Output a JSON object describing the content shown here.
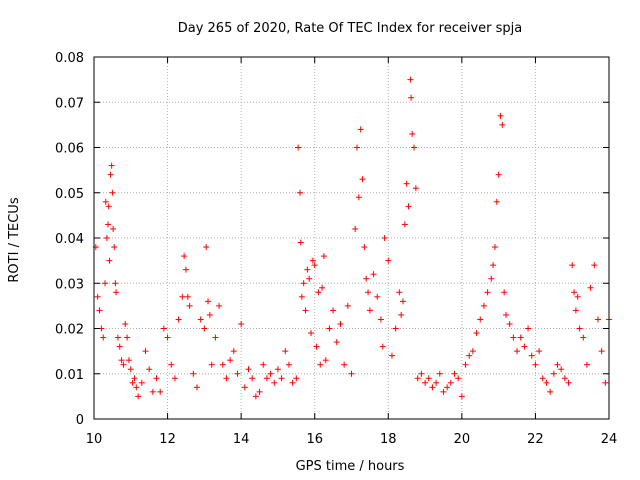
{
  "chart_data": {
    "type": "scatter",
    "title": "Day 265 of 2020, Rate Of TEC Index for receiver spja",
    "xlabel": "GPS time / hours",
    "ylabel": "ROTI / TECUs",
    "xlim": [
      10,
      24
    ],
    "ylim": [
      0,
      0.08
    ],
    "xticks": [
      10,
      12,
      14,
      16,
      18,
      20,
      22,
      24
    ],
    "xtick_labels": [
      "10",
      "12",
      "14",
      "16",
      "18",
      "20",
      "22",
      "24"
    ],
    "yticks": [
      0,
      0.01,
      0.02,
      0.03,
      0.04,
      0.05,
      0.06,
      0.07,
      0.08
    ],
    "ytick_labels": [
      "0",
      "0.01",
      "0.02",
      "0.03",
      "0.04",
      "0.05",
      "0.06",
      "0.07",
      "0.08"
    ],
    "grid": true,
    "marker": "+",
    "marker_color": "#ff0000",
    "series": [
      {
        "name": "ROTI",
        "x": [
          10.05,
          10.1,
          10.15,
          10.2,
          10.25,
          10.3,
          10.32,
          10.35,
          10.38,
          10.4,
          10.42,
          10.45,
          10.48,
          10.5,
          10.52,
          10.55,
          10.58,
          10.6,
          10.65,
          10.7,
          10.75,
          10.8,
          10.85,
          10.9,
          10.95,
          11.0,
          11.05,
          11.1,
          11.15,
          11.2,
          11.3,
          11.4,
          11.5,
          11.6,
          11.7,
          11.8,
          11.9,
          12.0,
          12.1,
          12.2,
          12.3,
          12.4,
          12.45,
          12.5,
          12.55,
          12.6,
          12.7,
          12.8,
          12.9,
          13.0,
          13.05,
          13.1,
          13.15,
          13.2,
          13.3,
          13.4,
          13.5,
          13.6,
          13.7,
          13.8,
          13.9,
          14.0,
          14.1,
          14.2,
          14.3,
          14.4,
          14.5,
          14.6,
          14.7,
          14.8,
          14.9,
          15.0,
          15.1,
          15.2,
          15.3,
          15.4,
          15.5,
          15.55,
          15.6,
          15.62,
          15.65,
          15.7,
          15.75,
          15.8,
          15.85,
          15.9,
          15.95,
          16.0,
          16.05,
          16.1,
          16.15,
          16.2,
          16.25,
          16.3,
          16.4,
          16.5,
          16.6,
          16.7,
          16.8,
          16.9,
          17.0,
          17.1,
          17.15,
          17.2,
          17.25,
          17.3,
          17.35,
          17.4,
          17.45,
          17.5,
          17.6,
          17.7,
          17.8,
          17.85,
          17.9,
          18.0,
          18.1,
          18.2,
          18.3,
          18.35,
          18.4,
          18.45,
          18.5,
          18.55,
          18.6,
          18.62,
          18.65,
          18.7,
          18.75,
          18.8,
          18.9,
          19.0,
          19.1,
          19.2,
          19.3,
          19.4,
          19.5,
          19.6,
          19.7,
          19.8,
          19.9,
          20.0,
          20.1,
          20.2,
          20.3,
          20.4,
          20.5,
          20.6,
          20.7,
          20.8,
          20.85,
          20.9,
          20.95,
          21.0,
          21.05,
          21.1,
          21.15,
          21.2,
          21.3,
          21.4,
          21.5,
          21.6,
          21.7,
          21.8,
          21.9,
          22.0,
          22.1,
          22.2,
          22.3,
          22.4,
          22.5,
          22.6,
          22.7,
          22.8,
          22.9,
          23.0,
          23.05,
          23.1,
          23.15,
          23.2,
          23.3,
          23.4,
          23.5,
          23.6,
          23.7,
          23.8,
          23.9,
          24.0
        ],
        "y": [
          0.038,
          0.027,
          0.024,
          0.02,
          0.018,
          0.03,
          0.048,
          0.04,
          0.043,
          0.047,
          0.035,
          0.054,
          0.056,
          0.05,
          0.042,
          0.038,
          0.03,
          0.028,
          0.018,
          0.016,
          0.013,
          0.012,
          0.021,
          0.018,
          0.013,
          0.011,
          0.008,
          0.009,
          0.007,
          0.005,
          0.008,
          0.015,
          0.011,
          0.006,
          0.009,
          0.006,
          0.02,
          0.018,
          0.012,
          0.009,
          0.022,
          0.027,
          0.036,
          0.033,
          0.027,
          0.025,
          0.01,
          0.007,
          0.022,
          0.02,
          0.038,
          0.026,
          0.023,
          0.012,
          0.018,
          0.025,
          0.012,
          0.009,
          0.013,
          0.015,
          0.01,
          0.021,
          0.007,
          0.011,
          0.009,
          0.005,
          0.006,
          0.012,
          0.009,
          0.01,
          0.008,
          0.011,
          0.009,
          0.015,
          0.012,
          0.008,
          0.009,
          0.06,
          0.05,
          0.039,
          0.027,
          0.03,
          0.024,
          0.033,
          0.031,
          0.019,
          0.035,
          0.034,
          0.016,
          0.028,
          0.012,
          0.029,
          0.036,
          0.013,
          0.02,
          0.024,
          0.017,
          0.021,
          0.012,
          0.025,
          0.01,
          0.042,
          0.06,
          0.049,
          0.064,
          0.053,
          0.038,
          0.031,
          0.028,
          0.024,
          0.032,
          0.027,
          0.022,
          0.016,
          0.04,
          0.035,
          0.014,
          0.02,
          0.028,
          0.023,
          0.026,
          0.043,
          0.052,
          0.047,
          0.075,
          0.071,
          0.063,
          0.06,
          0.051,
          0.009,
          0.01,
          0.008,
          0.009,
          0.007,
          0.008,
          0.01,
          0.006,
          0.007,
          0.008,
          0.01,
          0.009,
          0.005,
          0.012,
          0.014,
          0.015,
          0.019,
          0.022,
          0.025,
          0.028,
          0.031,
          0.034,
          0.038,
          0.048,
          0.054,
          0.067,
          0.065,
          0.028,
          0.023,
          0.021,
          0.018,
          0.015,
          0.018,
          0.016,
          0.02,
          0.014,
          0.012,
          0.015,
          0.009,
          0.008,
          0.006,
          0.01,
          0.012,
          0.011,
          0.009,
          0.008,
          0.034,
          0.028,
          0.024,
          0.027,
          0.02,
          0.018,
          0.012,
          0.029,
          0.034,
          0.022,
          0.015,
          0.008,
          0.022
        ]
      }
    ]
  }
}
